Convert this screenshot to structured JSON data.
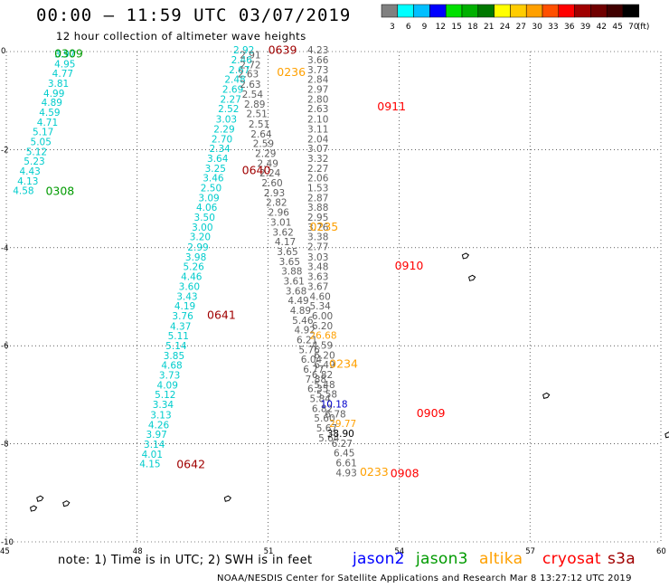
{
  "title": "00:00 – 11:59 UTC 03/07/2019",
  "subtitle": "12 hour collection of altimeter wave heights",
  "note": "note:  1) Time is in UTC;  2) SWH is in feet",
  "credit": "NOAA/NESDIS Center for Satellite Applications and Research    Mar  8 13:27:12 UTC 2019",
  "colorbar": {
    "unit_label": "(ft)",
    "ticks": [
      "3",
      "6",
      "9",
      "12",
      "15",
      "18",
      "21",
      "24",
      "27",
      "30",
      "33",
      "36",
      "39",
      "42",
      "45",
      "70"
    ],
    "colors": [
      "#808080",
      "#00ffff",
      "#00bfff",
      "#0000ff",
      "#00e000",
      "#00b000",
      "#007800",
      "#ffff00",
      "#ffcc00",
      "#ffa000",
      "#ff5000",
      "#ff0000",
      "#a00000",
      "#700000",
      "#400000",
      "#000000"
    ]
  },
  "legend": [
    {
      "name": "jason2",
      "color": "#0000ff"
    },
    {
      "name": "jason3",
      "color": "#009a00"
    },
    {
      "name": "altika",
      "color": "#ffa000"
    },
    {
      "name": "cryosat",
      "color": "#ff0000"
    },
    {
      "name": "s3a",
      "color": "#a00000"
    }
  ],
  "chart_data": {
    "type": "scatter",
    "title": "00:00 – 11:59 UTC 03/07/2019",
    "subtitle": "12 hour collection of altimeter wave heights",
    "xlim": [
      45,
      60
    ],
    "ylim": [
      -10,
      0
    ],
    "x_ticks": [
      "45",
      "48",
      "51",
      "54",
      "57",
      "60"
    ],
    "y_ticks": [
      "0",
      "-2",
      "-4",
      "-6",
      "-8",
      "-10"
    ],
    "grid": true,
    "legend_position": "bottom",
    "tracks": [
      {
        "satellite": "jason3",
        "color": "#00cccc",
        "points": [
          {
            "lon": 46.1,
            "lat": -0.12,
            "swh": "3.97"
          },
          {
            "lon": 46.1,
            "lat": -0.32,
            "swh": "4.95"
          },
          {
            "lon": 46.05,
            "lat": -0.52,
            "swh": "4.77"
          },
          {
            "lon": 45.95,
            "lat": -0.72,
            "swh": "3.81"
          },
          {
            "lon": 45.85,
            "lat": -0.92,
            "swh": "4.99"
          },
          {
            "lon": 45.8,
            "lat": -1.11,
            "swh": "4.89"
          },
          {
            "lon": 45.75,
            "lat": -1.31,
            "swh": "4.59"
          },
          {
            "lon": 45.7,
            "lat": -1.51,
            "swh": "4.71"
          },
          {
            "lon": 45.6,
            "lat": -1.71,
            "swh": "5.17"
          },
          {
            "lon": 45.55,
            "lat": -1.91,
            "swh": "5.05"
          },
          {
            "lon": 45.45,
            "lat": -2.11,
            "swh": "5.12"
          },
          {
            "lon": 45.4,
            "lat": -2.31,
            "swh": "5.23"
          },
          {
            "lon": 45.3,
            "lat": -2.51,
            "swh": "4.43"
          },
          {
            "lon": 45.25,
            "lat": -2.71,
            "swh": "4.13"
          },
          {
            "lon": 45.15,
            "lat": -2.91,
            "swh": "4.58"
          }
        ]
      },
      {
        "satellite": "s3a",
        "color": "#00cccc",
        "points": [
          {
            "lon": 50.2,
            "lat": -0.04,
            "swh": "2.92"
          },
          {
            "lon": 50.15,
            "lat": -0.24,
            "swh": "2.46"
          },
          {
            "lon": 50.1,
            "lat": -0.44,
            "swh": "2.67"
          },
          {
            "lon": 50.0,
            "lat": -0.64,
            "swh": "2.48"
          },
          {
            "lon": 49.95,
            "lat": -0.84,
            "swh": "2.69"
          },
          {
            "lon": 49.9,
            "lat": -1.04,
            "swh": "2.27"
          },
          {
            "lon": 49.85,
            "lat": -1.24,
            "swh": "2.52"
          },
          {
            "lon": 49.8,
            "lat": -1.45,
            "swh": "3.03"
          },
          {
            "lon": 49.75,
            "lat": -1.65,
            "swh": "2.29"
          },
          {
            "lon": 49.7,
            "lat": -1.85,
            "swh": "2.70"
          },
          {
            "lon": 49.65,
            "lat": -2.05,
            "swh": "2.34"
          },
          {
            "lon": 49.6,
            "lat": -2.25,
            "swh": "3.64"
          },
          {
            "lon": 49.55,
            "lat": -2.45,
            "swh": "3.25"
          },
          {
            "lon": 49.5,
            "lat": -2.65,
            "swh": "3.46"
          },
          {
            "lon": 49.45,
            "lat": -2.85,
            "swh": "2.50"
          },
          {
            "lon": 49.4,
            "lat": -3.05,
            "swh": "3.09"
          },
          {
            "lon": 49.35,
            "lat": -3.25,
            "swh": "4.06"
          },
          {
            "lon": 49.3,
            "lat": -3.45,
            "swh": "3.50"
          },
          {
            "lon": 49.25,
            "lat": -3.65,
            "swh": "3.00"
          },
          {
            "lon": 49.2,
            "lat": -3.85,
            "swh": "3.20"
          },
          {
            "lon": 49.15,
            "lat": -4.06,
            "swh": "2.99"
          },
          {
            "lon": 49.1,
            "lat": -4.26,
            "swh": "3.98"
          },
          {
            "lon": 49.05,
            "lat": -4.46,
            "swh": "5.26"
          },
          {
            "lon": 49.0,
            "lat": -4.66,
            "swh": "4.46"
          },
          {
            "lon": 48.95,
            "lat": -4.86,
            "swh": "3.60"
          },
          {
            "lon": 48.9,
            "lat": -5.06,
            "swh": "3.43"
          },
          {
            "lon": 48.85,
            "lat": -5.26,
            "swh": "4.19"
          },
          {
            "lon": 48.8,
            "lat": -5.46,
            "swh": "3.76"
          },
          {
            "lon": 48.75,
            "lat": -5.67,
            "swh": "4.37"
          },
          {
            "lon": 48.7,
            "lat": -5.87,
            "swh": "5.11"
          },
          {
            "lon": 48.65,
            "lat": -6.07,
            "swh": "5.14"
          },
          {
            "lon": 48.6,
            "lat": -6.27,
            "swh": "3.85"
          },
          {
            "lon": 48.55,
            "lat": -6.47,
            "swh": "4.68"
          },
          {
            "lon": 48.5,
            "lat": -6.67,
            "swh": "3.73"
          },
          {
            "lon": 48.45,
            "lat": -6.87,
            "swh": "4.09"
          },
          {
            "lon": 48.4,
            "lat": -7.07,
            "swh": "5.12"
          },
          {
            "lon": 48.35,
            "lat": -7.27,
            "swh": "3.34"
          },
          {
            "lon": 48.3,
            "lat": -7.48,
            "swh": "3.13"
          },
          {
            "lon": 48.25,
            "lat": -7.68,
            "swh": "4.26"
          },
          {
            "lon": 48.2,
            "lat": -7.88,
            "swh": "3.97"
          },
          {
            "lon": 48.15,
            "lat": -8.08,
            "swh": "3.14"
          },
          {
            "lon": 48.1,
            "lat": -8.28,
            "swh": "4.01"
          },
          {
            "lon": 48.05,
            "lat": -8.48,
            "swh": "4.15"
          }
        ]
      },
      {
        "satellite": "s3a-near",
        "color": "#606060",
        "points": [
          {
            "lon": 50.35,
            "lat": -0.14,
            "swh": "2.91"
          },
          {
            "lon": 50.35,
            "lat": -0.34,
            "swh": "2.72"
          },
          {
            "lon": 50.3,
            "lat": -0.53,
            "swh": "2.63"
          },
          {
            "lon": 50.35,
            "lat": -0.74,
            "swh": "2.63"
          },
          {
            "lon": 50.4,
            "lat": -0.94,
            "swh": "2.54"
          },
          {
            "lon": 50.45,
            "lat": -1.14,
            "swh": "2.89"
          },
          {
            "lon": 50.5,
            "lat": -1.34,
            "swh": "2.51"
          },
          {
            "lon": 50.55,
            "lat": -1.55,
            "swh": "2.51"
          },
          {
            "lon": 50.6,
            "lat": -1.75,
            "swh": "2.64"
          },
          {
            "lon": 50.65,
            "lat": -1.95,
            "swh": "2.59"
          },
          {
            "lon": 50.7,
            "lat": -2.15,
            "swh": "2.29"
          },
          {
            "lon": 50.75,
            "lat": -2.35,
            "swh": "2.49"
          },
          {
            "lon": 50.8,
            "lat": -2.55,
            "swh": "2.24"
          },
          {
            "lon": 50.85,
            "lat": -2.75,
            "swh": "2.60"
          },
          {
            "lon": 50.9,
            "lat": -2.95,
            "swh": "2.93"
          },
          {
            "lon": 50.95,
            "lat": -3.15,
            "swh": "2.82"
          },
          {
            "lon": 51.0,
            "lat": -3.35,
            "swh": "2.96"
          },
          {
            "lon": 51.05,
            "lat": -3.55,
            "swh": "3.01"
          },
          {
            "lon": 51.1,
            "lat": -3.75,
            "swh": "3.62"
          },
          {
            "lon": 51.15,
            "lat": -3.95,
            "swh": "4.17"
          },
          {
            "lon": 51.2,
            "lat": -4.15,
            "swh": "3.65"
          },
          {
            "lon": 51.25,
            "lat": -4.35,
            "swh": "3.65"
          },
          {
            "lon": 51.3,
            "lat": -4.55,
            "swh": "3.88"
          },
          {
            "lon": 51.35,
            "lat": -4.75,
            "swh": "3.61"
          },
          {
            "lon": 51.4,
            "lat": -4.95,
            "swh": "3.68"
          },
          {
            "lon": 51.45,
            "lat": -5.15,
            "swh": "4.49"
          },
          {
            "lon": 51.5,
            "lat": -5.35,
            "swh": "4.89"
          },
          {
            "lon": 51.55,
            "lat": -5.55,
            "swh": "5.46"
          },
          {
            "lon": 51.6,
            "lat": -5.75,
            "swh": "4.92"
          },
          {
            "lon": 51.65,
            "lat": -5.95,
            "swh": "6.21"
          },
          {
            "lon": 51.7,
            "lat": -6.15,
            "swh": "5.76"
          },
          {
            "lon": 51.75,
            "lat": -6.35,
            "swh": "6.04"
          },
          {
            "lon": 51.8,
            "lat": -6.55,
            "swh": "6.77"
          },
          {
            "lon": 51.85,
            "lat": -6.75,
            "swh": "7.88"
          },
          {
            "lon": 51.9,
            "lat": -6.95,
            "swh": "6.35"
          },
          {
            "lon": 51.95,
            "lat": -7.15,
            "swh": "5.84"
          },
          {
            "lon": 52.0,
            "lat": -7.35,
            "swh": "6.82"
          },
          {
            "lon": 52.05,
            "lat": -7.55,
            "swh": "5.60"
          },
          {
            "lon": 52.1,
            "lat": -7.75,
            "swh": "5.67"
          },
          {
            "lon": 52.15,
            "lat": -7.95,
            "swh": "5.64"
          }
        ]
      },
      {
        "satellite": "cryosat",
        "color": "#606060",
        "points": [
          {
            "lon": 51.9,
            "lat": -0.04,
            "swh": "4.23"
          },
          {
            "lon": 51.9,
            "lat": -0.24,
            "swh": "3.66"
          },
          {
            "lon": 51.9,
            "lat": -0.44,
            "swh": "3.73"
          },
          {
            "lon": 51.9,
            "lat": -0.64,
            "swh": "2.84"
          },
          {
            "lon": 51.9,
            "lat": -0.84,
            "swh": "2.97"
          },
          {
            "lon": 51.9,
            "lat": -1.04,
            "swh": "2.80"
          },
          {
            "lon": 51.9,
            "lat": -1.24,
            "swh": "2.63"
          },
          {
            "lon": 51.9,
            "lat": -1.45,
            "swh": "2.10"
          },
          {
            "lon": 51.9,
            "lat": -1.65,
            "swh": "3.11"
          },
          {
            "lon": 51.9,
            "lat": -1.85,
            "swh": "2.04"
          },
          {
            "lon": 51.9,
            "lat": -2.05,
            "swh": "3.07"
          },
          {
            "lon": 51.9,
            "lat": -2.25,
            "swh": "3.32"
          },
          {
            "lon": 51.9,
            "lat": -2.45,
            "swh": "2.27"
          },
          {
            "lon": 51.9,
            "lat": -2.65,
            "swh": "2.06"
          },
          {
            "lon": 51.9,
            "lat": -2.85,
            "swh": "1.53"
          },
          {
            "lon": 51.9,
            "lat": -3.05,
            "swh": "2.87"
          },
          {
            "lon": 51.9,
            "lat": -3.25,
            "swh": "3.88"
          },
          {
            "lon": 51.9,
            "lat": -3.45,
            "swh": "2.95"
          },
          {
            "lon": 51.9,
            "lat": -3.65,
            "swh": "3.76"
          },
          {
            "lon": 51.9,
            "lat": -3.85,
            "swh": "3.38"
          },
          {
            "lon": 51.9,
            "lat": -4.05,
            "swh": "2.77"
          },
          {
            "lon": 51.9,
            "lat": -4.26,
            "swh": "3.03"
          },
          {
            "lon": 51.9,
            "lat": -4.46,
            "swh": "3.48"
          },
          {
            "lon": 51.9,
            "lat": -4.66,
            "swh": "3.63"
          },
          {
            "lon": 51.9,
            "lat": -4.86,
            "swh": "3.67"
          },
          {
            "lon": 51.95,
            "lat": -5.06,
            "swh": "4.60"
          },
          {
            "lon": 51.95,
            "lat": -5.26,
            "swh": "5.34"
          },
          {
            "lon": 52.0,
            "lat": -5.46,
            "swh": "6.00"
          },
          {
            "lon": 52.0,
            "lat": -5.66,
            "swh": "6.20"
          },
          {
            "lon": 51.95,
            "lat": -5.86,
            "swh": "26.68"
          },
          {
            "lon": 52.0,
            "lat": -6.06,
            "swh": "4.59"
          },
          {
            "lon": 52.05,
            "lat": -6.26,
            "swh": "6.20"
          },
          {
            "lon": 52.05,
            "lat": -6.46,
            "swh": "6.49"
          },
          {
            "lon": 52.0,
            "lat": -6.66,
            "swh": "6.82"
          },
          {
            "lon": 52.05,
            "lat": -6.86,
            "swh": "5.48"
          },
          {
            "lon": 52.1,
            "lat": -7.06,
            "swh": "5.58"
          },
          {
            "lon": 52.2,
            "lat": -7.26,
            "swh": "10.18"
          },
          {
            "lon": 52.3,
            "lat": -7.46,
            "swh": "6.78"
          },
          {
            "lon": 52.4,
            "lat": -7.66,
            "swh": "29.77"
          },
          {
            "lon": 52.35,
            "lat": -7.86,
            "swh": "38.90"
          },
          {
            "lon": 52.45,
            "lat": -8.06,
            "swh": "6.27"
          },
          {
            "lon": 52.5,
            "lat": -8.26,
            "swh": "6.45"
          },
          {
            "lon": 52.55,
            "lat": -8.46,
            "swh": "6.61"
          },
          {
            "lon": 52.55,
            "lat": -8.66,
            "swh": "4.93"
          }
        ]
      }
    ],
    "time_labels": [
      {
        "text": "0309",
        "lon": 46.1,
        "lat": -0.12,
        "color": "#009a00"
      },
      {
        "text": "0308",
        "lon": 45.9,
        "lat": -2.92,
        "color": "#009a00"
      },
      {
        "text": "0639",
        "lon": 51.0,
        "lat": -0.05,
        "color": "#a00000"
      },
      {
        "text": "0640",
        "lon": 50.4,
        "lat": -2.5,
        "color": "#a00000"
      },
      {
        "text": "0641",
        "lon": 49.6,
        "lat": -5.45,
        "color": "#a00000"
      },
      {
        "text": "0642",
        "lon": 48.9,
        "lat": -8.5,
        "color": "#a00000"
      },
      {
        "text": "0236",
        "lon": 51.2,
        "lat": -0.5,
        "color": "#ffa000"
      },
      {
        "text": "0235",
        "lon": 51.95,
        "lat": -3.65,
        "color": "#ffa000"
      },
      {
        "text": "0234",
        "lon": 52.4,
        "lat": -6.45,
        "color": "#ffa000"
      },
      {
        "text": "0233",
        "lon": 53.1,
        "lat": -8.65,
        "color": "#ffa000"
      },
      {
        "text": "0911",
        "lon": 53.5,
        "lat": -1.2,
        "color": "#ff0000"
      },
      {
        "text": "0910",
        "lon": 53.9,
        "lat": -4.45,
        "color": "#ff0000"
      },
      {
        "text": "0909",
        "lon": 54.4,
        "lat": -7.45,
        "color": "#ff0000"
      },
      {
        "text": "0908",
        "lon": 53.8,
        "lat": -8.68,
        "color": "#ff0000"
      }
    ]
  }
}
